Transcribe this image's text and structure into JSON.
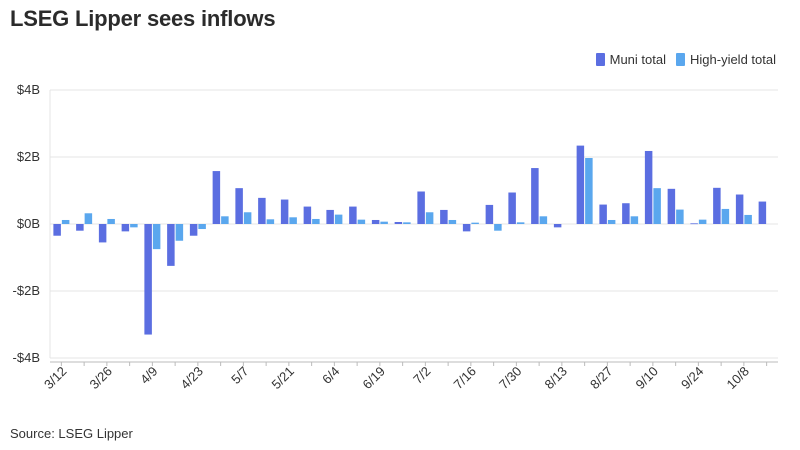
{
  "chart_data": {
    "type": "bar",
    "title": "LSEG Lipper sees inflows",
    "source": "Source: LSEG Lipper",
    "ylim": [
      -4,
      4
    ],
    "y_ticks": [
      4,
      2,
      0,
      -2,
      -4
    ],
    "y_tick_labels": [
      "$4B",
      "$2B",
      "$0B",
      "-$2B",
      "-$4B"
    ],
    "x_tick_labels": [
      "3/12",
      "3/26",
      "4/9",
      "4/23",
      "5/7",
      "5/21",
      "6/4",
      "6/19",
      "7/2",
      "7/16",
      "7/30",
      "8/13",
      "8/27",
      "9/10",
      "9/24",
      "10/8"
    ],
    "grid": true,
    "legend_position": "top-right",
    "colors": {
      "muni": "#5b6ee1",
      "hy": "#5aa7ee",
      "grid": "#e4e4e4",
      "axis": "#bbbbbb"
    },
    "series": [
      {
        "name": "Muni total",
        "values": [
          -0.35,
          -0.2,
          -0.55,
          -0.22,
          -3.3,
          -1.25,
          -0.35,
          1.58,
          1.07,
          0.78,
          0.73,
          0.52,
          0.42,
          0.52,
          0.12,
          0.06,
          0.97,
          0.42,
          -0.22,
          0.57,
          0.94,
          1.67,
          -0.1,
          2.34,
          0.58,
          0.62,
          2.18,
          1.05,
          0.02,
          1.08,
          0.88,
          0.67
        ]
      },
      {
        "name": "High-yield total",
        "values": [
          0.12,
          0.32,
          0.15,
          -0.1,
          -0.75,
          -0.5,
          -0.15,
          0.23,
          0.35,
          0.14,
          0.2,
          0.15,
          0.28,
          0.13,
          0.07,
          0.05,
          0.35,
          0.12,
          0.04,
          -0.2,
          0.05,
          0.23,
          0.0,
          1.97,
          0.12,
          0.23,
          1.07,
          0.43,
          0.13,
          0.45,
          0.27,
          0.0
        ]
      }
    ]
  }
}
